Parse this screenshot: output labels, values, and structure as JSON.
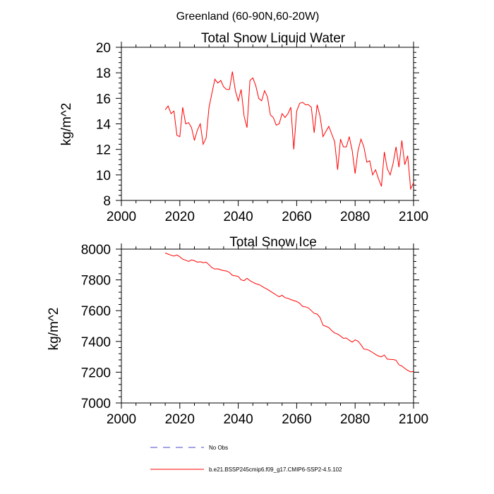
{
  "figure_title": "Greenland (60-90N,60-20W)",
  "legend": [
    {
      "label": "No Obs",
      "color": "#4a4acc",
      "style": "dashed"
    },
    {
      "label": "b.e21.BSSP245cmip6.f09_g17.CMIP6-SSP2-4.5.102",
      "color": "#ff0000",
      "style": "solid"
    }
  ],
  "chart_data": [
    {
      "type": "line",
      "title": "Total Snow Liquid Water",
      "ylabel": "kg/m^2",
      "xlabel": "",
      "xlim": [
        2000,
        2100
      ],
      "ylim": [
        8,
        20
      ],
      "xticks": [
        2000,
        2020,
        2040,
        2060,
        2080,
        2100
      ],
      "yticks": [
        8,
        10,
        12,
        14,
        16,
        18,
        20
      ],
      "grid": false,
      "series": [
        {
          "name": "b.e21.BSSP245cmip6.f09_g17.CMIP6-SSP2-4.5.102",
          "color": "#ff0000",
          "x": [
            2015,
            2016,
            2017,
            2018,
            2019,
            2020,
            2021,
            2022,
            2023,
            2024,
            2025,
            2026,
            2027,
            2028,
            2029,
            2030,
            2031,
            2032,
            2033,
            2034,
            2035,
            2036,
            2037,
            2038,
            2039,
            2040,
            2041,
            2042,
            2043,
            2044,
            2045,
            2046,
            2047,
            2048,
            2049,
            2050,
            2051,
            2052,
            2053,
            2054,
            2055,
            2056,
            2057,
            2058,
            2059,
            2060,
            2061,
            2062,
            2063,
            2064,
            2065,
            2066,
            2067,
            2068,
            2069,
            2070,
            2071,
            2072,
            2073,
            2074,
            2075,
            2076,
            2077,
            2078,
            2079,
            2080,
            2081,
            2082,
            2083,
            2084,
            2085,
            2086,
            2087,
            2088,
            2089,
            2090,
            2091,
            2092,
            2093,
            2094,
            2095,
            2096,
            2097,
            2098,
            2099,
            2100
          ],
          "values": [
            15.1,
            15.4,
            14.8,
            15.0,
            13.1,
            13.0,
            15.3,
            14.0,
            14.1,
            13.7,
            12.7,
            13.5,
            14.0,
            12.4,
            12.9,
            15.3,
            16.4,
            17.5,
            17.2,
            17.4,
            16.9,
            16.7,
            16.7,
            18.1,
            16.6,
            15.8,
            16.7,
            14.6,
            13.7,
            17.4,
            17.6,
            17.0,
            16.0,
            15.8,
            16.6,
            16.1,
            14.7,
            14.5,
            13.9,
            14.0,
            14.8,
            14.5,
            14.8,
            15.3,
            12.0,
            15.0,
            15.6,
            15.7,
            15.5,
            15.5,
            15.3,
            13.3,
            15.5,
            14.6,
            13.0,
            13.4,
            13.8,
            13.2,
            12.6,
            10.4,
            12.8,
            12.2,
            12.2,
            13.0,
            11.9,
            10.1,
            11.9,
            12.8,
            12.2,
            11.0,
            11.1,
            10.0,
            10.4,
            9.7,
            9.1,
            11.8,
            10.5,
            10.0,
            10.9,
            12.2,
            10.6,
            12.7,
            10.8,
            11.5,
            8.9,
            9.4
          ]
        }
      ]
    },
    {
      "type": "line",
      "title": "Total Snow Ice",
      "ylabel": "kg/m^2",
      "xlabel": "",
      "xlim": [
        2000,
        2100
      ],
      "ylim": [
        7000,
        8000
      ],
      "xticks": [
        2000,
        2020,
        2040,
        2060,
        2080,
        2100
      ],
      "yticks": [
        7000,
        7200,
        7400,
        7600,
        7800,
        8000
      ],
      "grid": false,
      "series": [
        {
          "name": "b.e21.BSSP245cmip6.f09_g17.CMIP6-SSP2-4.5.102",
          "color": "#ff0000",
          "x": [
            2015,
            2016,
            2017,
            2018,
            2019,
            2020,
            2021,
            2022,
            2023,
            2024,
            2025,
            2026,
            2027,
            2028,
            2029,
            2030,
            2031,
            2032,
            2033,
            2034,
            2035,
            2036,
            2037,
            2038,
            2039,
            2040,
            2041,
            2042,
            2043,
            2044,
            2045,
            2046,
            2047,
            2048,
            2049,
            2050,
            2051,
            2052,
            2053,
            2054,
            2055,
            2056,
            2057,
            2058,
            2059,
            2060,
            2061,
            2062,
            2063,
            2064,
            2065,
            2066,
            2067,
            2068,
            2069,
            2070,
            2071,
            2072,
            2073,
            2074,
            2075,
            2076,
            2077,
            2078,
            2079,
            2080,
            2081,
            2082,
            2083,
            2084,
            2085,
            2086,
            2087,
            2088,
            2089,
            2090,
            2091,
            2092,
            2093,
            2094,
            2095,
            2096,
            2097,
            2098,
            2099,
            2100
          ],
          "values": [
            7975,
            7968,
            7960,
            7955,
            7962,
            7950,
            7935,
            7928,
            7920,
            7930,
            7925,
            7915,
            7918,
            7912,
            7915,
            7898,
            7880,
            7870,
            7872,
            7865,
            7860,
            7858,
            7848,
            7830,
            7826,
            7822,
            7800,
            7795,
            7810,
            7795,
            7785,
            7775,
            7770,
            7760,
            7748,
            7738,
            7726,
            7714,
            7702,
            7690,
            7700,
            7685,
            7680,
            7672,
            7665,
            7660,
            7648,
            7628,
            7625,
            7618,
            7600,
            7582,
            7578,
            7555,
            7505,
            7498,
            7490,
            7470,
            7455,
            7448,
            7435,
            7420,
            7422,
            7408,
            7395,
            7410,
            7402,
            7378,
            7350,
            7348,
            7340,
            7328,
            7315,
            7305,
            7300,
            7312,
            7285,
            7283,
            7282,
            7278,
            7248,
            7240,
            7225,
            7212,
            7202,
            7205
          ]
        }
      ]
    }
  ]
}
